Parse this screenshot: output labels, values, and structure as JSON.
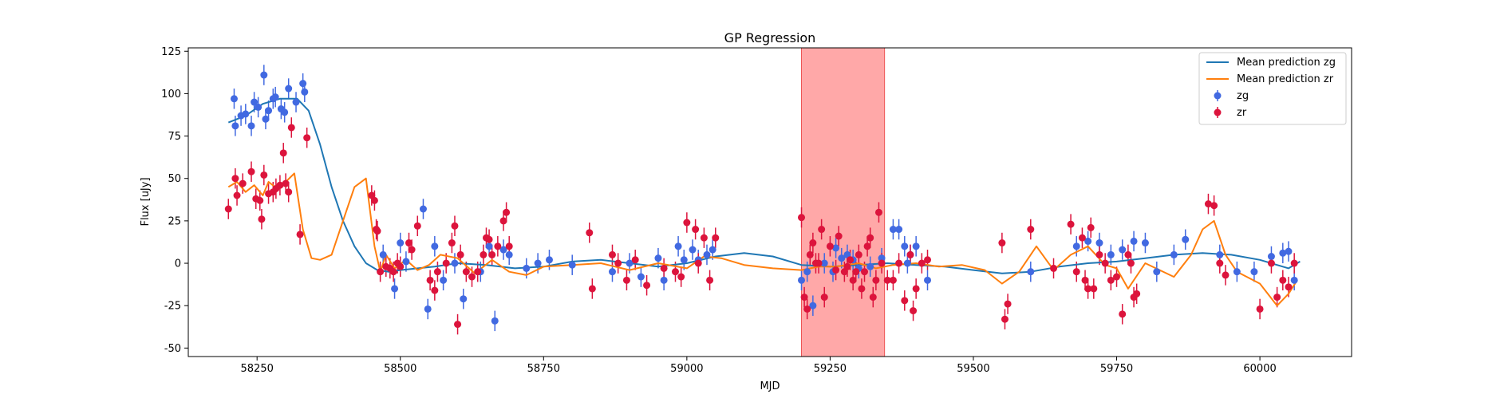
{
  "chart_data": {
    "type": "scatter",
    "title": "GP Regression",
    "xlabel": "MJD",
    "ylabel": "Flux [uJy]",
    "xlim": [
      58130,
      60160
    ],
    "ylim": [
      -55,
      127
    ],
    "xticks": [
      58250,
      58500,
      58750,
      59000,
      59250,
      59500,
      59750,
      60000
    ],
    "yticks": [
      -50,
      -25,
      0,
      25,
      50,
      75,
      100,
      125
    ],
    "grid": false,
    "legend_position": "top-right",
    "shaded_region": {
      "x0": 59200,
      "x1": 59345,
      "color": "#ff9999"
    },
    "lines": [
      {
        "name": "Mean prediction zg",
        "color": "#1f77b4",
        "x": [
          58200,
          58230,
          58260,
          58290,
          58320,
          58340,
          58360,
          58380,
          58400,
          58420,
          58440,
          58460,
          58480,
          58500,
          58530,
          58560,
          58600,
          58650,
          58700,
          58750,
          58800,
          58850,
          58900,
          58950,
          59000,
          59050,
          59100,
          59150,
          59200,
          59250,
          59300,
          59350,
          59400,
          59450,
          59500,
          59550,
          59600,
          59650,
          59700,
          59750,
          59800,
          59850,
          59900,
          59950,
          60000,
          60050,
          60070
        ],
        "y": [
          83,
          87,
          94,
          97,
          97,
          90,
          70,
          45,
          25,
          10,
          0,
          -4,
          -5,
          -4,
          -3,
          -2,
          0,
          -1,
          -3,
          -2,
          1,
          2,
          0,
          -2,
          0,
          4,
          6,
          4,
          -1,
          -2,
          -1,
          0,
          -1,
          -2,
          -4,
          -6,
          -5,
          -2,
          0,
          1,
          3,
          5,
          6,
          5,
          2,
          -3,
          1
        ]
      },
      {
        "name": "Mean prediction zr",
        "color": "#ff7f0e",
        "x": [
          58200,
          58215,
          58230,
          58245,
          58260,
          58270,
          58285,
          58300,
          58315,
          58330,
          58345,
          58360,
          58380,
          58400,
          58420,
          58440,
          58455,
          58465,
          58475,
          58490,
          58510,
          58530,
          58550,
          58570,
          58600,
          58630,
          58660,
          58690,
          58720,
          58750,
          58800,
          58850,
          58900,
          58950,
          59000,
          59030,
          59060,
          59100,
          59150,
          59200,
          59230,
          59260,
          59300,
          59330,
          59360,
          59400,
          59440,
          59480,
          59520,
          59550,
          59580,
          59610,
          59640,
          59670,
          59700,
          59730,
          59750,
          59770,
          59800,
          59850,
          59880,
          59900,
          59920,
          59940,
          59960,
          60000,
          60030,
          60050,
          60065
        ],
        "y": [
          45,
          48,
          42,
          46,
          40,
          48,
          44,
          48,
          53,
          20,
          3,
          2,
          5,
          25,
          45,
          50,
          10,
          -5,
          5,
          -3,
          2,
          -4,
          -1,
          5,
          3,
          -6,
          2,
          -5,
          -7,
          -2,
          -1,
          0,
          -4,
          0,
          -3,
          4,
          3,
          -1,
          -3,
          -4,
          -2,
          -2,
          0,
          -3,
          -1,
          0,
          -2,
          -1,
          -4,
          -12,
          -5,
          10,
          -4,
          5,
          10,
          -1,
          -3,
          -15,
          0,
          -8,
          5,
          20,
          25,
          5,
          -5,
          -12,
          -25,
          -18,
          -10
        ]
      }
    ],
    "series": [
      {
        "name": "zg",
        "color": "#4169e1",
        "x": [
          58210,
          58212,
          58222,
          58230,
          58240,
          58245,
          58252,
          58262,
          58265,
          58270,
          58278,
          58282,
          58292,
          58298,
          58305,
          58318,
          58330,
          58333,
          58470,
          58490,
          58500,
          58510,
          58540,
          58548,
          58560,
          58575,
          58595,
          58610,
          58640,
          58655,
          58665,
          58680,
          58690,
          58720,
          58740,
          58760,
          58800,
          58870,
          58900,
          58920,
          58950,
          58960,
          58985,
          58995,
          59010,
          59020,
          59035,
          59045,
          59200,
          59210,
          59220,
          59240,
          59255,
          59260,
          59270,
          59280,
          59290,
          59300,
          59320,
          59340,
          59360,
          59370,
          59380,
          59385,
          59390,
          59400,
          59420,
          59600,
          59680,
          59700,
          59720,
          59740,
          59760,
          59780,
          59800,
          59820,
          59850,
          59870,
          59930,
          59960,
          59990,
          60020,
          60040,
          60050,
          60060
        ],
        "y": [
          97,
          81,
          87,
          88,
          81,
          95,
          92,
          111,
          85,
          90,
          97,
          98,
          91,
          89,
          103,
          95,
          106,
          101,
          5,
          -15,
          12,
          1,
          32,
          -27,
          10,
          -10,
          0,
          -21,
          -5,
          10,
          -34,
          8,
          5,
          -3,
          0,
          2,
          -1,
          -5,
          0,
          -8,
          3,
          -10,
          10,
          2,
          8,
          2,
          5,
          8,
          -10,
          -5,
          -25,
          0,
          -5,
          9,
          3,
          5,
          2,
          -3,
          -2,
          3,
          20,
          20,
          10,
          0,
          5,
          10,
          -10,
          -5,
          10,
          13,
          12,
          5,
          8,
          13,
          12,
          -5,
          5,
          14,
          5,
          -5,
          -5,
          4,
          6,
          7,
          -10
        ]
      },
      {
        "name": "zr",
        "color": "#dc143c",
        "x": [
          58200,
          58212,
          58215,
          58225,
          58240,
          58248,
          58255,
          58258,
          58262,
          58270,
          58278,
          58283,
          58290,
          58296,
          58300,
          58305,
          58310,
          58325,
          58337,
          58450,
          58455,
          58458,
          58460,
          58465,
          58475,
          58482,
          58488,
          58495,
          58500,
          58515,
          58520,
          58530,
          58552,
          58560,
          58565,
          58580,
          58590,
          58595,
          58600,
          58605,
          58615,
          58625,
          58635,
          58645,
          58650,
          58655,
          58660,
          58670,
          58680,
          58685,
          58690,
          58830,
          58835,
          58870,
          58880,
          58895,
          58910,
          58930,
          58960,
          58980,
          58990,
          59000,
          59015,
          59020,
          59030,
          59040,
          59050,
          59200,
          59205,
          59210,
          59215,
          59220,
          59225,
          59230,
          59235,
          59240,
          59250,
          59260,
          59265,
          59275,
          59280,
          59285,
          59290,
          59295,
          59300,
          59305,
          59310,
          59315,
          59320,
          59325,
          59330,
          59335,
          59340,
          59350,
          59360,
          59370,
          59380,
          59390,
          59395,
          59400,
          59410,
          59420,
          59550,
          59555,
          59560,
          59600,
          59640,
          59670,
          59680,
          59690,
          59695,
          59700,
          59705,
          59710,
          59720,
          59730,
          59740,
          59750,
          59760,
          59770,
          59775,
          59780,
          59785,
          59910,
          59920,
          59930,
          59940,
          60000,
          60020,
          60030,
          60040,
          60050,
          60060
        ],
        "y": [
          32,
          50,
          40,
          47,
          54,
          38,
          37,
          26,
          52,
          41,
          42,
          44,
          46,
          65,
          47,
          42,
          80,
          17,
          74,
          40,
          37,
          20,
          19,
          -5,
          -2,
          -3,
          -5,
          0,
          -2,
          12,
          8,
          22,
          -10,
          -16,
          -5,
          0,
          12,
          22,
          -36,
          5,
          -5,
          -8,
          -5,
          5,
          15,
          14,
          5,
          10,
          25,
          30,
          10,
          18,
          -15,
          5,
          0,
          -10,
          2,
          -13,
          -3,
          -5,
          -8,
          24,
          20,
          0,
          15,
          -10,
          15,
          27,
          -20,
          -27,
          5,
          12,
          0,
          0,
          20,
          -20,
          10,
          -4,
          16,
          -5,
          -2,
          2,
          -10,
          -5,
          5,
          -15,
          -5,
          10,
          15,
          -20,
          -10,
          30,
          0,
          -10,
          -10,
          0,
          -22,
          5,
          -28,
          -15,
          0,
          2,
          12,
          -33,
          -24,
          20,
          -3,
          23,
          -5,
          15,
          -10,
          -15,
          21,
          -15,
          5,
          0,
          -10,
          -8,
          -30,
          5,
          0,
          -20,
          -18,
          35,
          34,
          0,
          -7,
          -27,
          0,
          -20,
          -10,
          -14,
          0
        ]
      }
    ],
    "legend": [
      "Mean prediction zg",
      "Mean prediction zr",
      "zg",
      "zr"
    ]
  }
}
